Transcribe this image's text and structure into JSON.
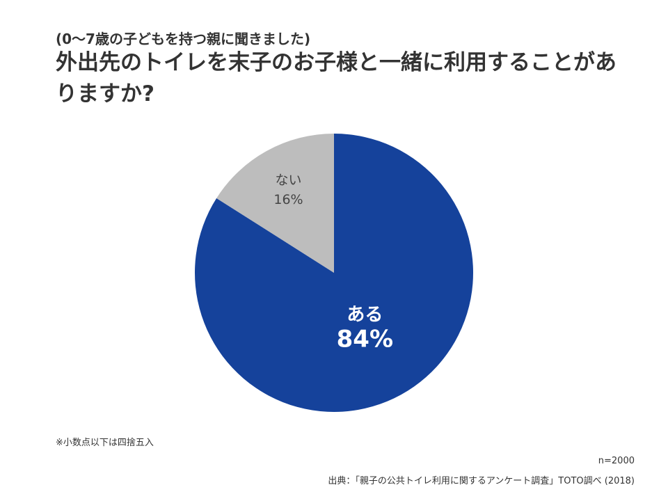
{
  "header": {
    "subtitle": "(0～7歳の子どもを持つ親に聞きました)",
    "title": "外出先のトイレを末子のお子様と一緒に利用することがありますか?"
  },
  "colors": {
    "aru": "#15429b",
    "nai": "#bdbdbd"
  },
  "chart_data": {
    "type": "pie",
    "title": "外出先のトイレを末子のお子様と一緒に利用することがありますか?",
    "slices": [
      {
        "label": "ある",
        "value": 84,
        "value_label": "84%",
        "color": "#15429b"
      },
      {
        "label": "ない",
        "value": 16,
        "value_label": "16%",
        "color": "#bdbdbd"
      }
    ],
    "start": "12 o'clock",
    "direction": "clockwise"
  },
  "footer": {
    "note": "※小数点以下は四捨五入",
    "sample": "n=2000",
    "source": "出典：「親子の公共トイレ利用に関するアンケート調査」TOTO調べ (2018)"
  }
}
